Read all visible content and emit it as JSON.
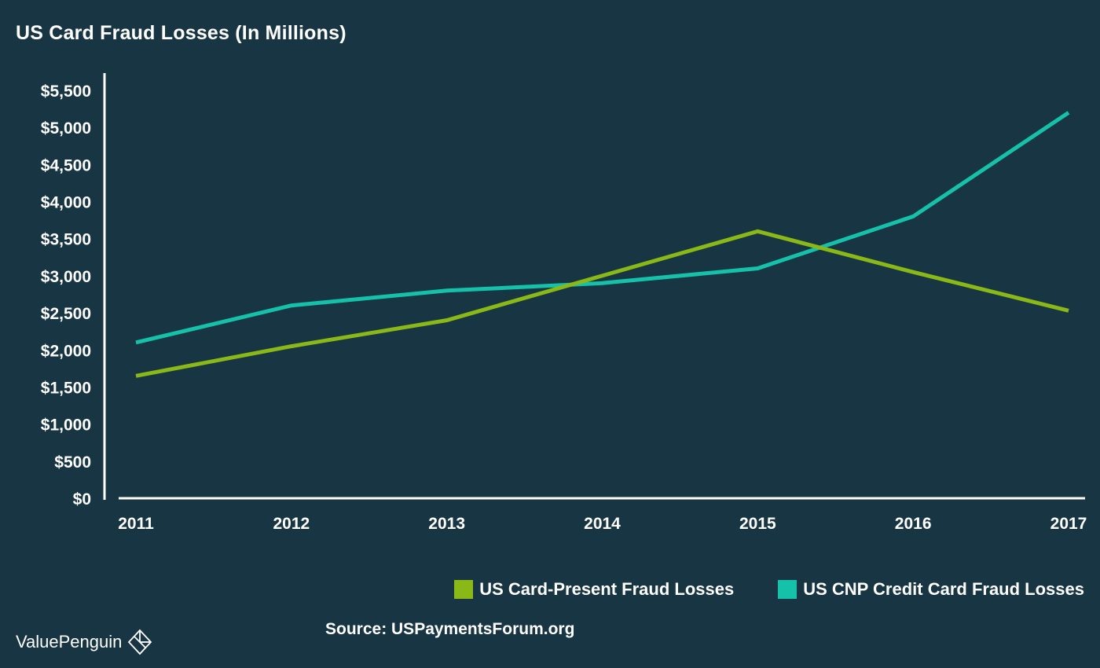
{
  "chart_data": {
    "type": "line",
    "title": "US Card Fraud Losses (In Millions)",
    "xlabel": "",
    "ylabel": "",
    "x": [
      "2011",
      "2012",
      "2013",
      "2014",
      "2015",
      "2016",
      "2017"
    ],
    "ylim": [
      0,
      5500
    ],
    "yticks": [
      0,
      500,
      1000,
      1500,
      2000,
      2500,
      3000,
      3500,
      4000,
      4500,
      5000,
      5500
    ],
    "ytick_labels": [
      "$0",
      "$500",
      "$1,000",
      "$1,500",
      "$2,000",
      "$2,500",
      "$3,000",
      "$3,500",
      "$4,000",
      "$4,500",
      "$5,000",
      "$5,500"
    ],
    "grid": false,
    "legend_position": "bottom-right",
    "series": [
      {
        "name": "US Card-Present Fraud Losses",
        "color": "#8ab817",
        "values": [
          1650,
          2050,
          2400,
          3000,
          3600,
          3050,
          2530
        ]
      },
      {
        "name": "US CNP Credit Card Fraud Losses",
        "color": "#16c1aa",
        "values": [
          2100,
          2600,
          2800,
          2900,
          3100,
          3800,
          5200
        ]
      }
    ]
  },
  "footer": {
    "brand": "ValuePenguin",
    "source": "Source: USPaymentsForum.org"
  },
  "colors": {
    "background": "#173543",
    "text": "#ffffff"
  }
}
